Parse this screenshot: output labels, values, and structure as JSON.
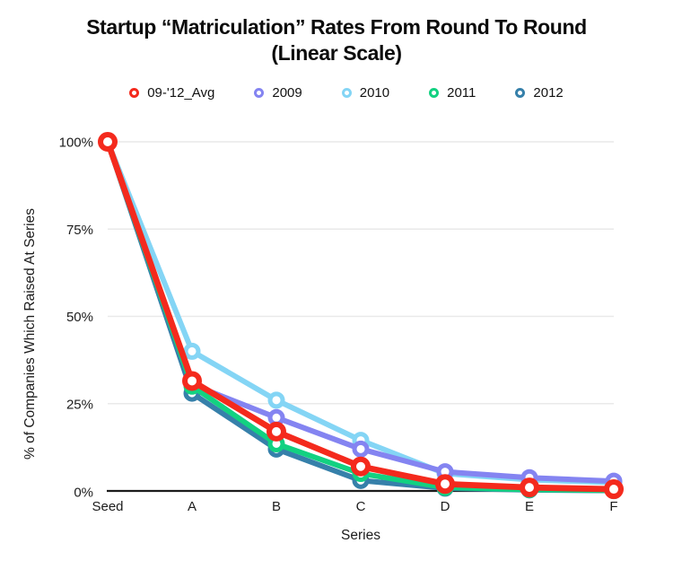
{
  "title": {
    "line1": "Startup “Matriculation” Rates From Round To Round",
    "line2": "(Linear Scale)"
  },
  "axes": {
    "y_label": "% of Companies Which Raised At Series",
    "x_label": "Series",
    "y_ticks": [
      "100%",
      "75%",
      "50%",
      "25%",
      "0%"
    ],
    "x_ticks": [
      "Seed",
      "A",
      "B",
      "C",
      "D",
      "E",
      "F"
    ]
  },
  "chart_data": {
    "type": "line",
    "title": "Startup “Matriculation” Rates From Round To Round (Linear Scale)",
    "xlabel": "Series",
    "ylabel": "% of Companies Which Raised At Series",
    "x": [
      "Seed",
      "A",
      "B",
      "C",
      "D",
      "E",
      "F"
    ],
    "ylim": [
      0,
      100
    ],
    "y_tick_values": [
      100,
      75,
      50,
      25,
      0
    ],
    "grid": true,
    "legend_position": "top",
    "series": [
      {
        "name": "09-'12_Avg",
        "color": "#f42a1d",
        "values": [
          100,
          31.5,
          17,
          7,
          2,
          1,
          0.5
        ],
        "emphasis": true
      },
      {
        "name": "2009",
        "color": "#8484f1",
        "values": [
          100,
          30.5,
          21,
          12,
          5.5,
          3.8,
          2.8
        ],
        "emphasis": false
      },
      {
        "name": "2010",
        "color": "#84d5f5",
        "values": [
          100,
          40,
          26,
          14.5,
          5,
          3.2,
          2.4
        ],
        "emphasis": false
      },
      {
        "name": "2011",
        "color": "#12d181",
        "values": [
          100,
          30,
          13.5,
          5,
          1,
          0.4,
          0.15
        ],
        "emphasis": false
      },
      {
        "name": "2012",
        "color": "#3680aa",
        "values": [
          100,
          28,
          12,
          3,
          0.8,
          0.3,
          0.1
        ],
        "emphasis": false
      }
    ],
    "draw_order": [
      2,
      1,
      4,
      3,
      0
    ]
  },
  "colors": {
    "background": "#ffffff",
    "grid": "#e9e9e9",
    "axis": "#1b1b1b",
    "text": "#1c1c1c"
  }
}
